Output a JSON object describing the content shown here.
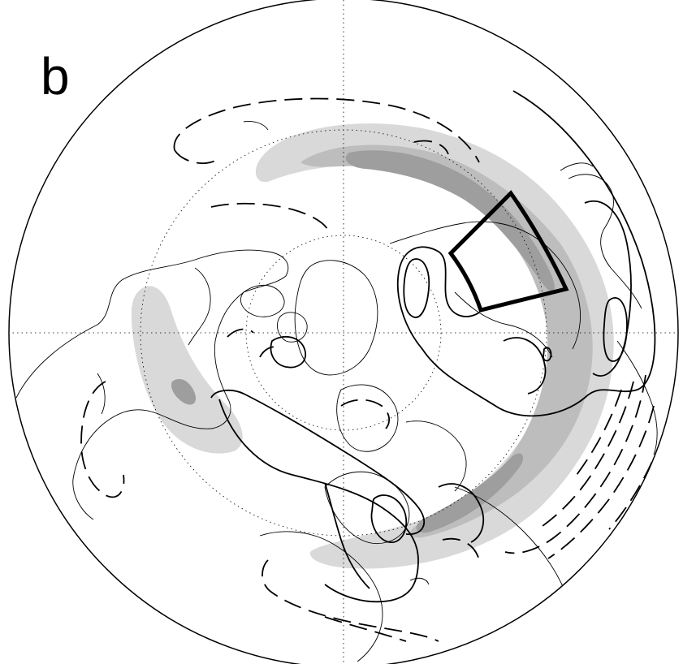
{
  "panel": {
    "label": "b"
  },
  "map": {
    "projection": "polar-stereographic",
    "hemisphere": "north",
    "graticule": "dotted",
    "colors": {
      "outline": "#000000",
      "shade_light": "#d9d9d9",
      "shade_mid": "#bdbdbd",
      "shade_dark": "#9e9e9e"
    }
  }
}
